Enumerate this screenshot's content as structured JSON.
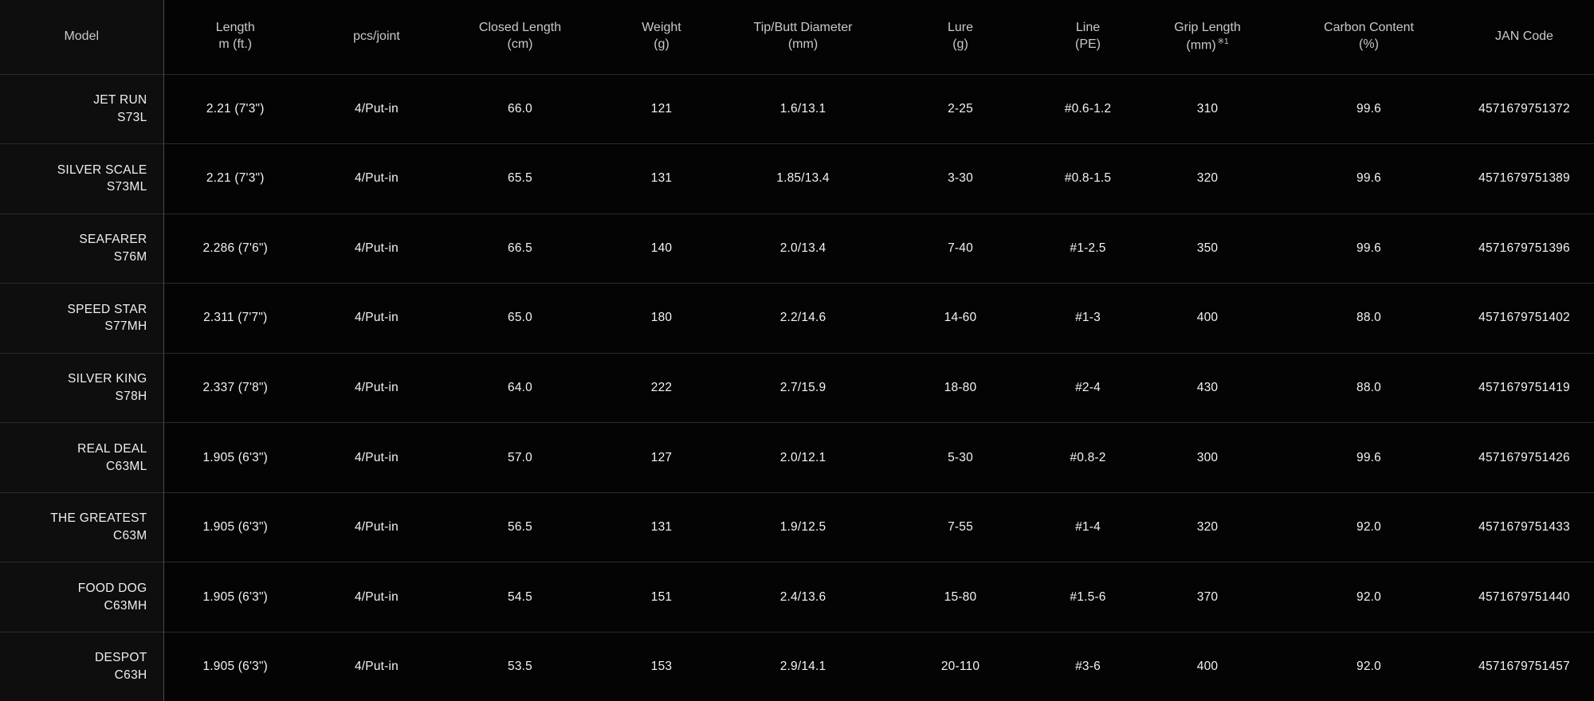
{
  "table": {
    "columns": [
      {
        "id": "model",
        "line1": "Model",
        "line2": "",
        "superscript": ""
      },
      {
        "id": "length",
        "line1": "Length",
        "line2": "m (ft.)",
        "superscript": ""
      },
      {
        "id": "pcs_joint",
        "line1": "pcs/joint",
        "line2": "",
        "superscript": ""
      },
      {
        "id": "closed_length",
        "line1": "Closed Length",
        "line2": "(cm)",
        "superscript": ""
      },
      {
        "id": "weight",
        "line1": "Weight",
        "line2": "(g)",
        "superscript": ""
      },
      {
        "id": "tip_butt_diameter",
        "line1": "Tip/Butt Diameter",
        "line2": "(mm)",
        "superscript": ""
      },
      {
        "id": "lure",
        "line1": "Lure",
        "line2": "(g)",
        "superscript": ""
      },
      {
        "id": "line",
        "line1": "Line",
        "line2": "(PE)",
        "superscript": ""
      },
      {
        "id": "grip_length",
        "line1": "Grip Length",
        "line2": "(mm)",
        "superscript": "※1"
      },
      {
        "id": "carbon_content",
        "line1": "Carbon Content",
        "line2": "(%)",
        "superscript": ""
      },
      {
        "id": "jan_code",
        "line1": "JAN Code",
        "line2": "",
        "superscript": ""
      }
    ],
    "rows": [
      {
        "model_name": "JET RUN",
        "model_code": "S73L",
        "length": "2.21 (7'3\")",
        "pcs_joint": "4/Put-in",
        "closed_length": "66.0",
        "weight": "121",
        "tip_butt_diameter": "1.6/13.1",
        "lure": "2-25",
        "line": "#0.6-1.2",
        "grip_length": "310",
        "carbon_content": "99.6",
        "jan_code": "4571679751372"
      },
      {
        "model_name": "SILVER SCALE",
        "model_code": "S73ML",
        "length": "2.21 (7'3\")",
        "pcs_joint": "4/Put-in",
        "closed_length": "65.5",
        "weight": "131",
        "tip_butt_diameter": "1.85/13.4",
        "lure": "3-30",
        "line": "#0.8-1.5",
        "grip_length": "320",
        "carbon_content": "99.6",
        "jan_code": "4571679751389"
      },
      {
        "model_name": "SEAFARER",
        "model_code": "S76M",
        "length": "2.286 (7'6\")",
        "pcs_joint": "4/Put-in",
        "closed_length": "66.5",
        "weight": "140",
        "tip_butt_diameter": "2.0/13.4",
        "lure": "7-40",
        "line": "#1-2.5",
        "grip_length": "350",
        "carbon_content": "99.6",
        "jan_code": "4571679751396"
      },
      {
        "model_name": "SPEED STAR",
        "model_code": "S77MH",
        "length": "2.311 (7'7\")",
        "pcs_joint": "4/Put-in",
        "closed_length": "65.0",
        "weight": "180",
        "tip_butt_diameter": "2.2/14.6",
        "lure": "14-60",
        "line": "#1-3",
        "grip_length": "400",
        "carbon_content": "88.0",
        "jan_code": "4571679751402"
      },
      {
        "model_name": "SILVER KING",
        "model_code": "S78H",
        "length": "2.337 (7'8\")",
        "pcs_joint": "4/Put-in",
        "closed_length": "64.0",
        "weight": "222",
        "tip_butt_diameter": "2.7/15.9",
        "lure": "18-80",
        "line": "#2-4",
        "grip_length": "430",
        "carbon_content": "88.0",
        "jan_code": "4571679751419"
      },
      {
        "model_name": "REAL DEAL",
        "model_code": "C63ML",
        "length": "1.905 (6'3\")",
        "pcs_joint": "4/Put-in",
        "closed_length": "57.0",
        "weight": "127",
        "tip_butt_diameter": "2.0/12.1",
        "lure": "5-30",
        "line": "#0.8-2",
        "grip_length": "300",
        "carbon_content": "99.6",
        "jan_code": "4571679751426"
      },
      {
        "model_name": "THE GREATEST",
        "model_code": "C63M",
        "length": "1.905 (6'3\")",
        "pcs_joint": "4/Put-in",
        "closed_length": "56.5",
        "weight": "131",
        "tip_butt_diameter": "1.9/12.5",
        "lure": "7-55",
        "line": "#1-4",
        "grip_length": "320",
        "carbon_content": "92.0",
        "jan_code": "4571679751433"
      },
      {
        "model_name": "FOOD DOG",
        "model_code": "C63MH",
        "length": "1.905 (6'3\")",
        "pcs_joint": "4/Put-in",
        "closed_length": "54.5",
        "weight": "151",
        "tip_butt_diameter": "2.4/13.6",
        "lure": "15-80",
        "line": "#1.5-6",
        "grip_length": "370",
        "carbon_content": "92.0",
        "jan_code": "4571679751440"
      },
      {
        "model_name": "DESPOT",
        "model_code": "C63H",
        "length": "1.905 (6'3\")",
        "pcs_joint": "4/Put-in",
        "closed_length": "53.5",
        "weight": "153",
        "tip_butt_diameter": "2.9/14.1",
        "lure": "20-110",
        "line": "#3-6",
        "grip_length": "400",
        "carbon_content": "92.0",
        "jan_code": "4571679751457"
      }
    ]
  },
  "colors": {
    "page_background": "#040404",
    "model_column_background": "#0e0e0e",
    "column_divider": "#4a4a4a",
    "row_separator": "#2b2b2b",
    "header_text": "#c9c9c9",
    "cell_text": "#f3f3f3"
  }
}
